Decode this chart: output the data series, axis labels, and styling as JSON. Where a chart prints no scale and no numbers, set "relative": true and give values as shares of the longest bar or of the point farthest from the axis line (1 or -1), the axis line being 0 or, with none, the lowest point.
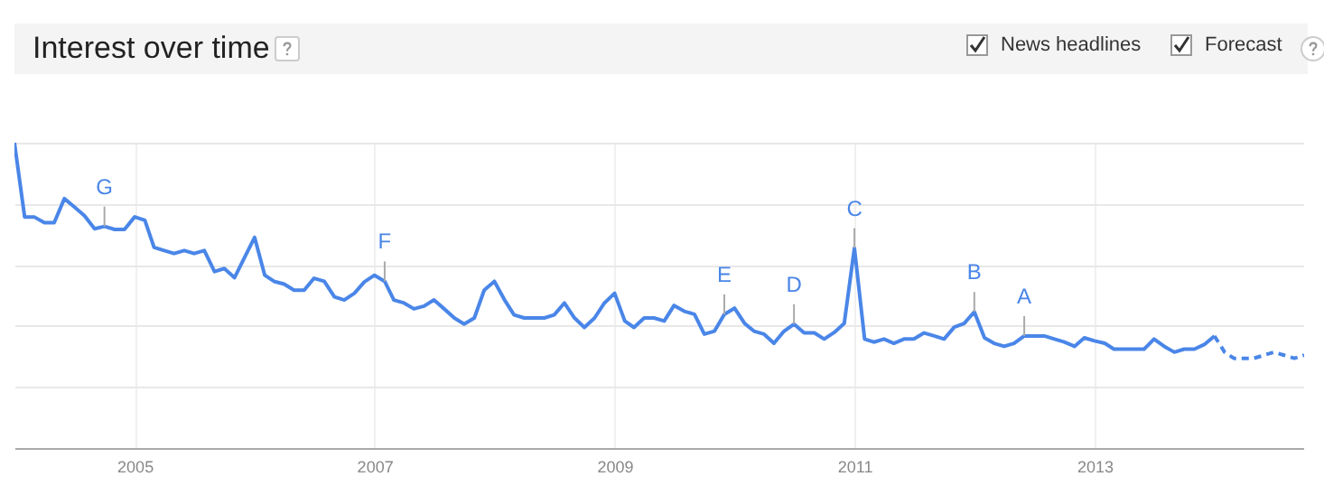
{
  "chart_data": {
    "type": "line",
    "title": "Interest over time",
    "relative": true,
    "grid": true,
    "marker": "none",
    "xlim": [
      "2004-01",
      "2014-10"
    ],
    "xticks": [
      "2005",
      "2007",
      "2009",
      "2011",
      "2013"
    ],
    "series": [
      {
        "color": "#4a86e8",
        "line_style": "solid",
        "x": [
          "2004-01",
          "2004-02",
          "2004-03",
          "2004-04",
          "2004-05",
          "2004-06",
          "2004-07",
          "2004-08",
          "2004-09",
          "2004-10",
          "2004-11",
          "2004-12",
          "2005-01",
          "2005-02",
          "2005-03",
          "2005-04",
          "2005-05",
          "2005-06",
          "2005-07",
          "2005-08",
          "2005-09",
          "2005-10",
          "2005-11",
          "2005-12",
          "2006-01",
          "2006-02",
          "2006-03",
          "2006-04",
          "2006-05",
          "2006-06",
          "2006-07",
          "2006-08",
          "2006-09",
          "2006-10",
          "2006-11",
          "2006-12",
          "2007-01",
          "2007-02",
          "2007-03",
          "2007-04",
          "2007-05",
          "2007-06",
          "2007-07",
          "2007-08",
          "2007-09",
          "2007-10",
          "2007-11",
          "2007-12",
          "2008-01",
          "2008-02",
          "2008-03",
          "2008-04",
          "2008-05",
          "2008-06",
          "2008-07",
          "2008-08",
          "2008-09",
          "2008-10",
          "2008-11",
          "2008-12",
          "2009-01",
          "2009-02",
          "2009-03",
          "2009-04",
          "2009-05",
          "2009-06",
          "2009-07",
          "2009-08",
          "2009-09",
          "2009-10",
          "2009-11",
          "2009-12",
          "2010-01",
          "2010-02",
          "2010-03",
          "2010-04",
          "2010-05",
          "2010-06",
          "2010-07",
          "2010-08",
          "2010-09",
          "2010-10",
          "2010-11",
          "2010-12",
          "2011-01",
          "2011-02",
          "2011-03",
          "2011-04",
          "2011-05",
          "2011-06",
          "2011-07",
          "2011-08",
          "2011-09",
          "2011-10",
          "2011-11",
          "2011-12",
          "2012-01",
          "2012-02",
          "2012-03",
          "2012-04",
          "2012-05",
          "2012-06",
          "2012-07",
          "2012-08",
          "2012-09",
          "2012-10",
          "2012-11",
          "2012-12",
          "2013-01",
          "2013-02",
          "2013-03",
          "2013-04",
          "2013-05",
          "2013-06",
          "2013-07",
          "2013-08",
          "2013-09",
          "2013-10",
          "2013-11",
          "2013-12",
          "2014-01"
        ],
        "values": [
          1.0,
          0.757,
          0.757,
          0.738,
          0.738,
          0.817,
          0.79,
          0.761,
          0.718,
          0.726,
          0.716,
          0.716,
          0.757,
          0.746,
          0.657,
          0.647,
          0.637,
          0.647,
          0.637,
          0.647,
          0.578,
          0.588,
          0.558,
          0.623,
          0.69,
          0.566,
          0.546,
          0.537,
          0.517,
          0.517,
          0.556,
          0.546,
          0.495,
          0.485,
          0.507,
          0.544,
          0.566,
          0.546,
          0.485,
          0.475,
          0.456,
          0.465,
          0.485,
          0.456,
          0.426,
          0.406,
          0.426,
          0.517,
          0.546,
          0.485,
          0.436,
          0.426,
          0.426,
          0.426,
          0.436,
          0.475,
          0.426,
          0.395,
          0.426,
          0.475,
          0.507,
          0.416,
          0.395,
          0.426,
          0.426,
          0.416,
          0.467,
          0.448,
          0.438,
          0.373,
          0.383,
          0.438,
          0.458,
          0.408,
          0.383,
          0.373,
          0.343,
          0.383,
          0.406,
          0.377,
          0.377,
          0.357,
          0.379,
          0.408,
          0.655,
          0.357,
          0.347,
          0.357,
          0.343,
          0.357,
          0.357,
          0.377,
          0.367,
          0.357,
          0.396,
          0.408,
          0.446,
          0.361,
          0.343,
          0.333,
          0.343,
          0.367,
          0.367,
          0.367,
          0.357,
          0.347,
          0.333,
          0.361,
          0.351,
          0.343,
          0.324,
          0.324,
          0.324,
          0.324,
          0.357,
          0.333,
          0.314,
          0.324,
          0.324,
          0.339,
          0.367
        ]
      },
      {
        "color": "#4a86e8",
        "line_style": "dashed",
        "x": [
          "2014-01",
          "2014-02",
          "2014-03",
          "2014-04",
          "2014-05",
          "2014-06",
          "2014-07",
          "2014-08",
          "2014-09",
          "2014-10"
        ],
        "values": [
          0.367,
          0.314,
          0.294,
          0.294,
          0.294,
          0.304,
          0.314,
          0.304,
          0.294,
          0.304
        ]
      }
    ],
    "annotations": [
      {
        "text": "G",
        "x": "2004-10",
        "y": 0.726
      },
      {
        "text": "F",
        "x": "2007-02",
        "y": 0.546
      },
      {
        "text": "E",
        "x": "2009-12",
        "y": 0.438
      },
      {
        "text": "D",
        "x": "2010-07",
        "y": 0.406
      },
      {
        "text": "C",
        "x": "2011-01",
        "y": 0.655
      },
      {
        "text": "B",
        "x": "2012-01",
        "y": 0.446
      },
      {
        "text": "A",
        "x": "2012-06",
        "y": 0.367
      },
      "News headlines",
      "Forecast"
    ]
  }
}
